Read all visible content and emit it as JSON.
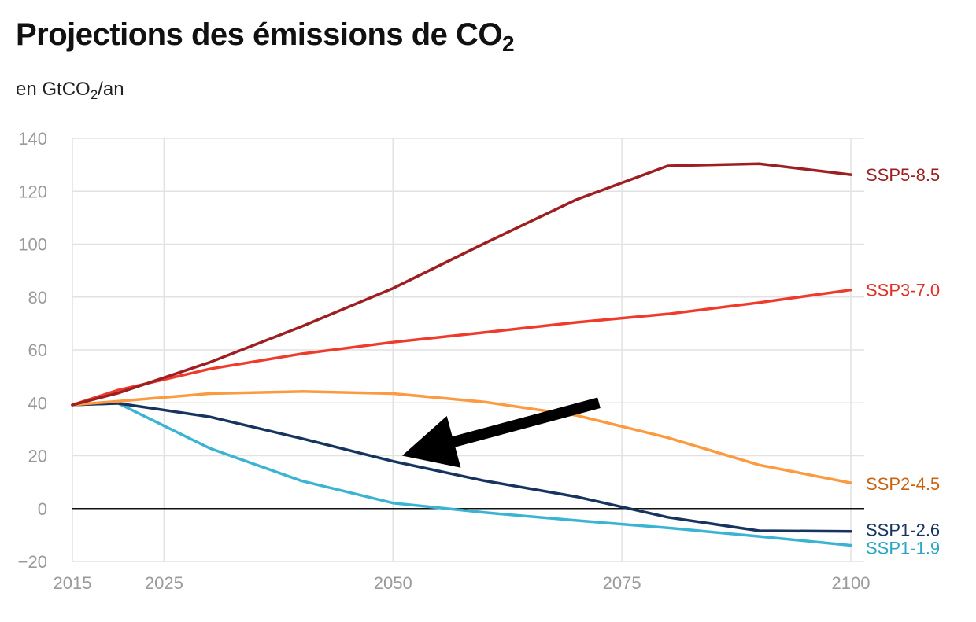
{
  "title": {
    "main": "Projections des émissions de CO",
    "sub": "2"
  },
  "subtitle": {
    "pre": "en GtCO",
    "sub": "2",
    "post": "/an"
  },
  "chart_data": {
    "type": "line",
    "ylim": [
      -20,
      140
    ],
    "xlim": [
      2015,
      2100
    ],
    "yticks": [
      -20,
      0,
      20,
      40,
      60,
      80,
      100,
      120,
      140
    ],
    "xticks": [
      2015,
      2025,
      2050,
      2075,
      2100
    ],
    "ytick_labels": [
      "−20",
      "0",
      "20",
      "40",
      "60",
      "80",
      "100",
      "120",
      "140"
    ],
    "xtick_labels": [
      "2015",
      "2025",
      "2050",
      "2075",
      "2100"
    ],
    "grid": true,
    "zero_line": true,
    "legend": "inline labels at right end of lines",
    "series": [
      {
        "name": "SSP5-8.5",
        "color": "#9e1f22",
        "label_color": "#9e1f22",
        "x": [
          2015,
          2020,
          2030,
          2040,
          2050,
          2060,
          2070,
          2080,
          2090,
          2100
        ],
        "y": [
          39.2,
          43.7,
          55.3,
          68.8,
          83.3,
          100.3,
          116.8,
          129.6,
          130.4,
          126.3
        ]
      },
      {
        "name": "SSP3-7.0",
        "color": "#ef3b2c",
        "label_color": "#e03127",
        "x": [
          2015,
          2020,
          2030,
          2040,
          2050,
          2060,
          2070,
          2080,
          2090,
          2100
        ],
        "y": [
          39.2,
          44.8,
          52.8,
          58.5,
          62.9,
          66.6,
          70.4,
          73.6,
          77.9,
          82.7
        ]
      },
      {
        "name": "SSP2-4.5",
        "color": "#fb9a40",
        "label_color": "#c8640f",
        "x": [
          2015,
          2020,
          2030,
          2040,
          2050,
          2060,
          2070,
          2080,
          2090,
          2100
        ],
        "y": [
          39.2,
          40.6,
          43.5,
          44.3,
          43.5,
          40.3,
          35.3,
          26.8,
          16.5,
          9.7
        ]
      },
      {
        "name": "SSP1-2.6",
        "color": "#17335f",
        "label_color": "#17335f",
        "x": [
          2015,
          2020,
          2030,
          2040,
          2050,
          2060,
          2070,
          2080,
          2090,
          2100
        ],
        "y": [
          39.2,
          39.8,
          34.7,
          26.5,
          17.9,
          10.5,
          4.5,
          -3.3,
          -8.4,
          -8.6
        ]
      },
      {
        "name": "SSP1-1.9",
        "color": "#3ab4d2",
        "label_color": "#2aa6c4",
        "x": [
          2015,
          2020,
          2030,
          2040,
          2050,
          2060,
          2070,
          2080,
          2090,
          2100
        ],
        "y": [
          39.2,
          39.8,
          22.8,
          10.5,
          2.1,
          -1.5,
          -4.5,
          -7.3,
          -10.5,
          -13.9
        ]
      }
    ],
    "annotations": [
      {
        "type": "arrow",
        "color": "#000000",
        "from": [
          2072.5,
          40
        ],
        "to": [
          2051,
          20
        ]
      }
    ]
  }
}
